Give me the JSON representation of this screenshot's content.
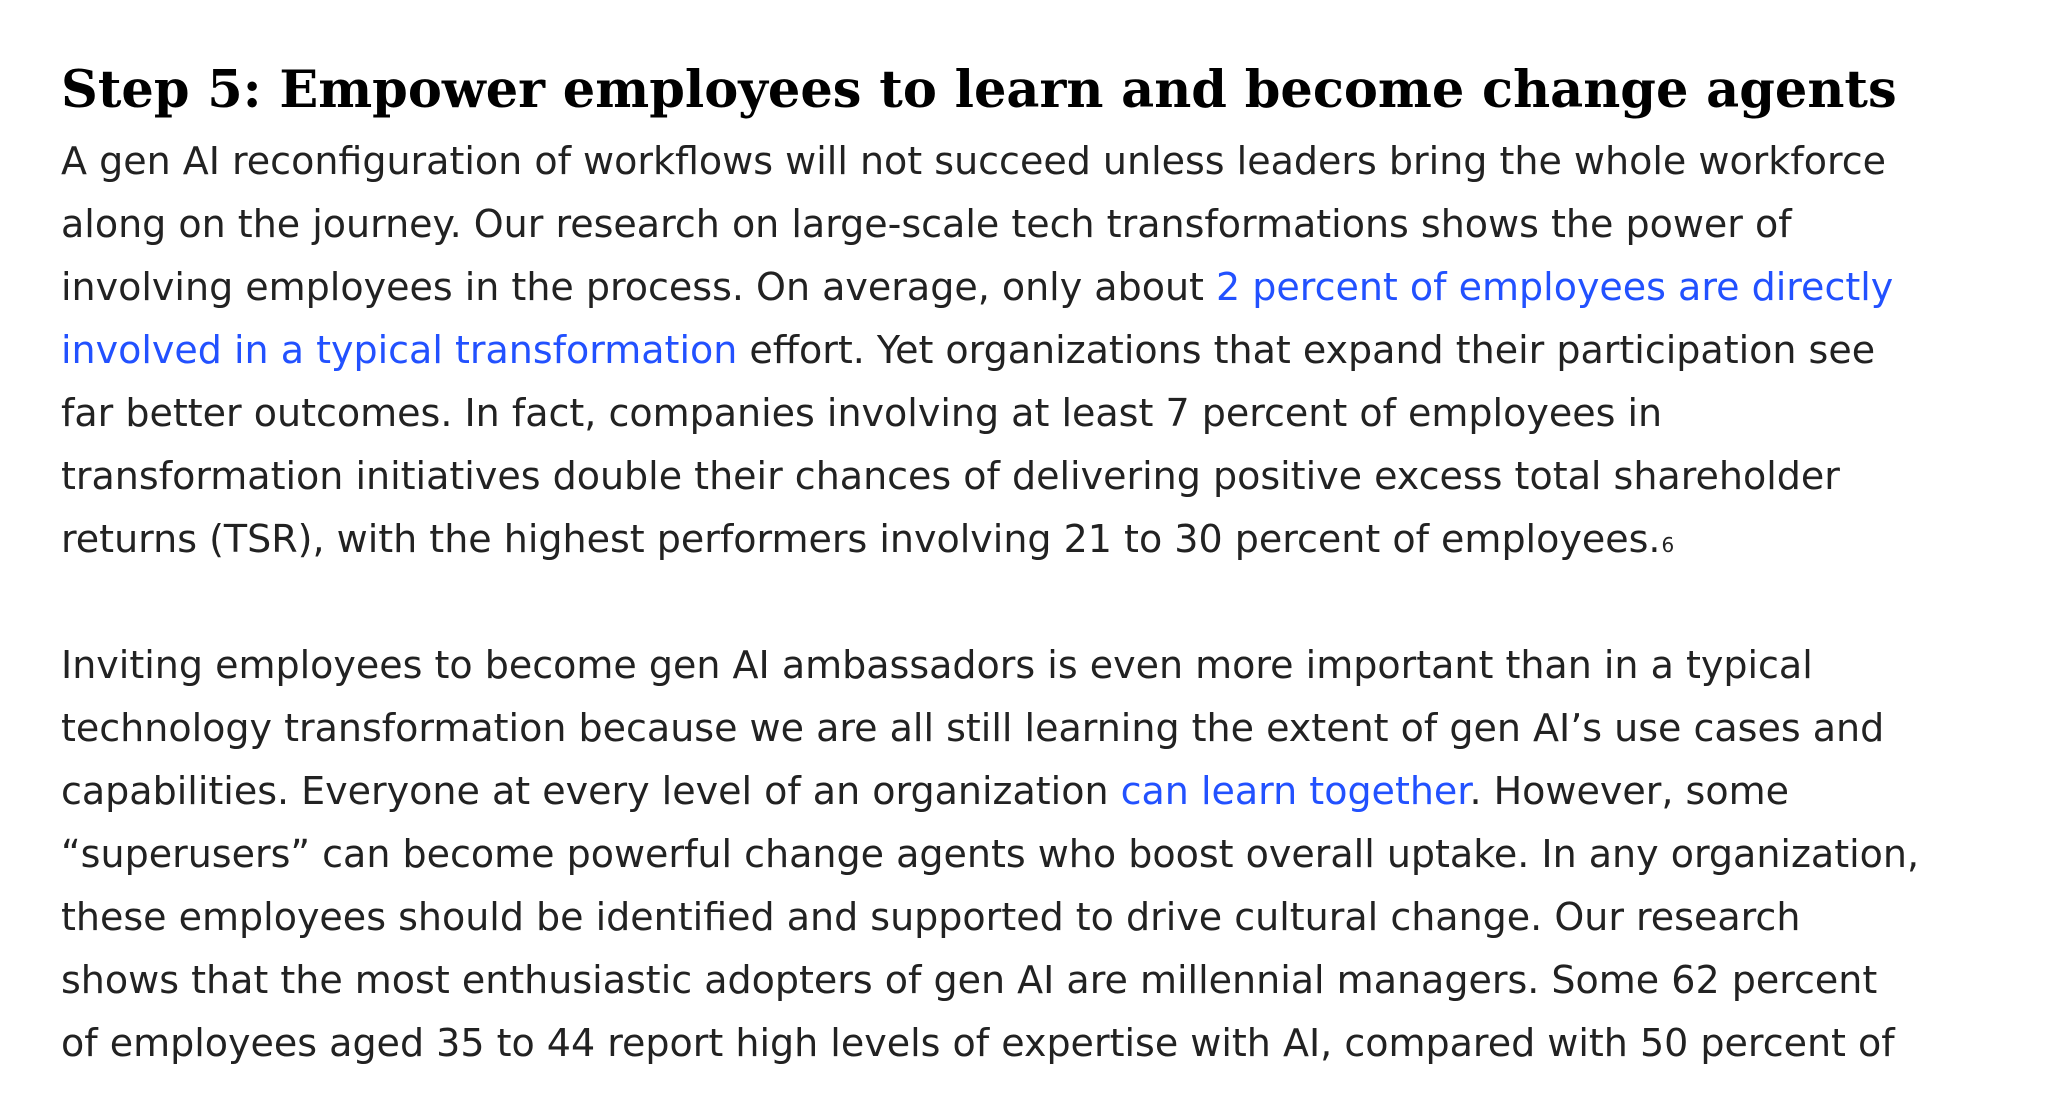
{
  "heading": "Step 5: Empower employees to learn and become change agents",
  "paragraph1": {
    "line1": "A gen AI reconfiguration of workflows will not succeed unless leaders bring the whole workforce",
    "line2": "along on the journey. Our research on large-scale tech transformations shows the power of",
    "line3_before": "involving employees in the process. On average, only about ",
    "link1_part1": "2 percent of employees are directly",
    "link1_part2": "involved in a typical transformation",
    "line4_after": " effort. Yet organizations that expand their participation see",
    "line5": "far better outcomes. In fact, companies involving at least 7 percent of employees in",
    "line6": "transformation initiatives double their chances of delivering positive excess total shareholder",
    "line7": "returns (TSR), with the highest performers involving 21 to 30 percent of employees.",
    "footnote": "6"
  },
  "paragraph2": {
    "line1": "Inviting employees to become gen AI ambassadors is even more important than in a typical",
    "line2": "technology transformation because we are all still learning the extent of gen AI’s use cases and",
    "line3_before": "capabilities. Everyone at every level of an organization ",
    "link2": "can learn together",
    "line3_after": ". However, some",
    "line4": "“superusers” can become powerful change agents who boost overall uptake. In any organization,",
    "line5": "these employees should be identified and supported to drive cultural change. Our research",
    "line6": "shows that the most enthusiastic adopters of gen AI are millennial managers. Some 62 percent",
    "line7": "of employees aged 35 to 44 report high levels of expertise with AI, compared with 50 percent of"
  },
  "colors": {
    "heading": "#000000",
    "body_text": "#222222",
    "link": "#2251ff"
  }
}
